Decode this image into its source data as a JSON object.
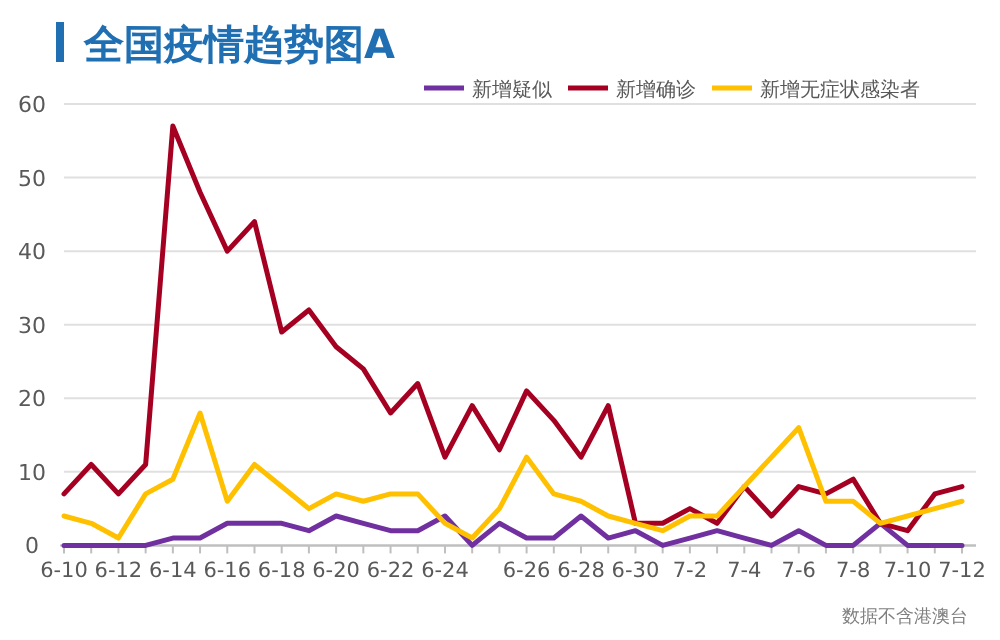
{
  "chart_data": {
    "type": "line",
    "title": "全国疫情趋势图A",
    "categories": [
      "6-10",
      null,
      "6-12",
      null,
      "6-14",
      null,
      "6-16",
      null,
      "6-18",
      null,
      "6-20",
      null,
      "6-22",
      null,
      "6-24",
      null,
      null,
      "6-26",
      null,
      "6-28",
      null,
      "6-30",
      null,
      "7-2",
      null,
      "7-4",
      null,
      "7-6",
      null,
      "7-8",
      null,
      "7-10",
      null,
      "7-12"
    ],
    "series": [
      {
        "name": "新增疑似",
        "color": "#7030a0",
        "values": [
          0,
          0,
          0,
          0,
          1,
          1,
          3,
          3,
          3,
          2,
          4,
          3,
          2,
          2,
          4,
          0,
          3,
          1,
          1,
          4,
          1,
          2,
          0,
          1,
          2,
          1,
          0,
          2,
          0,
          0,
          3,
          0,
          0,
          0
        ]
      },
      {
        "name": "新增确诊",
        "color": "#a50021",
        "values": [
          7,
          11,
          7,
          11,
          57,
          48,
          40,
          44,
          29,
          32,
          27,
          24,
          18,
          22,
          12,
          19,
          13,
          21,
          17,
          12,
          19,
          3,
          3,
          5,
          3,
          8,
          4,
          8,
          7,
          9,
          3,
          2,
          7,
          8
        ]
      },
      {
        "name": "新增无症状感染者",
        "color": "#ffc000",
        "values": [
          4,
          3,
          1,
          7,
          9,
          18,
          6,
          11,
          8,
          5,
          7,
          6,
          7,
          7,
          3,
          1,
          5,
          12,
          7,
          6,
          4,
          3,
          2,
          4,
          4,
          8,
          12,
          16,
          6,
          6,
          3,
          4,
          5,
          6
        ]
      }
    ],
    "ylim": [
      0,
      60
    ],
    "yticks": [
      0,
      10,
      20,
      30,
      40,
      50,
      60
    ],
    "grid": "y",
    "legend": "top right",
    "marker": "none",
    "line_style": "solid",
    "annotations": [
      "数据不含港澳台"
    ]
  }
}
